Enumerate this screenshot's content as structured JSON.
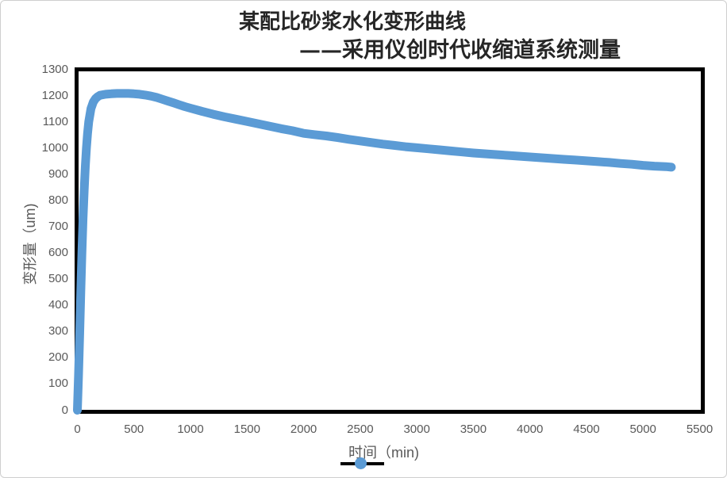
{
  "chart": {
    "title_line1": "某配比砂浆水化变形曲线",
    "title_line2": "——采用仪创时代收缩道系统测量",
    "y_axis_title": "变形量（um)",
    "x_axis_title": "时间（min)",
    "colors": {
      "series": "#5B9BD5",
      "axis_text": "#595959",
      "title_text": "#262626",
      "plot_border": "#000000",
      "legend_line": "#000000"
    }
  },
  "chart_data": {
    "type": "scatter",
    "title": "某配比砂浆水化变形曲线 ——采用仪创时代收缩道系统测量",
    "xlabel": "时间（min)",
    "ylabel": "变形量（um)",
    "xlim": [
      0,
      5500
    ],
    "ylim": [
      0,
      1300
    ],
    "x_ticks": [
      0,
      500,
      1000,
      1500,
      2000,
      2500,
      3000,
      3500,
      4000,
      4500,
      5000,
      5500
    ],
    "y_ticks": [
      0,
      100,
      200,
      300,
      400,
      500,
      600,
      700,
      800,
      900,
      1000,
      1100,
      1200,
      1300
    ],
    "grid": false,
    "legend_position": "bottom",
    "series": [
      {
        "name": "",
        "color": "#5B9BD5",
        "marker": "circle",
        "points": [
          [
            0,
            0
          ],
          [
            10,
            130
          ],
          [
            20,
            290
          ],
          [
            30,
            450
          ],
          [
            40,
            600
          ],
          [
            50,
            730
          ],
          [
            60,
            840
          ],
          [
            70,
            930
          ],
          [
            80,
            1000
          ],
          [
            90,
            1055
          ],
          [
            100,
            1100
          ],
          [
            120,
            1150
          ],
          [
            140,
            1175
          ],
          [
            160,
            1188
          ],
          [
            180,
            1196
          ],
          [
            200,
            1201
          ],
          [
            250,
            1205
          ],
          [
            300,
            1207
          ],
          [
            350,
            1208
          ],
          [
            400,
            1208
          ],
          [
            450,
            1208
          ],
          [
            500,
            1207
          ],
          [
            550,
            1205
          ],
          [
            600,
            1202
          ],
          [
            650,
            1198
          ],
          [
            700,
            1193
          ],
          [
            750,
            1186
          ],
          [
            800,
            1179
          ],
          [
            850,
            1172
          ],
          [
            900,
            1165
          ],
          [
            950,
            1158
          ],
          [
            1000,
            1152
          ],
          [
            1100,
            1140
          ],
          [
            1200,
            1129
          ],
          [
            1300,
            1119
          ],
          [
            1400,
            1110
          ],
          [
            1500,
            1101
          ],
          [
            1600,
            1092
          ],
          [
            1700,
            1083
          ],
          [
            1800,
            1074
          ],
          [
            1900,
            1066
          ],
          [
            2000,
            1056
          ],
          [
            2100,
            1051
          ],
          [
            2200,
            1046
          ],
          [
            2300,
            1040
          ],
          [
            2400,
            1033
          ],
          [
            2500,
            1027
          ],
          [
            2600,
            1021
          ],
          [
            2700,
            1015
          ],
          [
            2800,
            1010
          ],
          [
            2900,
            1005
          ],
          [
            3000,
            1001
          ],
          [
            3100,
            997
          ],
          [
            3200,
            993
          ],
          [
            3300,
            989
          ],
          [
            3400,
            985
          ],
          [
            3500,
            981
          ],
          [
            3600,
            978
          ],
          [
            3700,
            975
          ],
          [
            3800,
            972
          ],
          [
            3900,
            969
          ],
          [
            4000,
            966
          ],
          [
            4100,
            963
          ],
          [
            4200,
            960
          ],
          [
            4300,
            957
          ],
          [
            4400,
            954
          ],
          [
            4500,
            951
          ],
          [
            4600,
            948
          ],
          [
            4700,
            945
          ],
          [
            4800,
            941
          ],
          [
            4900,
            938
          ],
          [
            5000,
            934
          ],
          [
            5100,
            931
          ],
          [
            5200,
            929
          ],
          [
            5250,
            927
          ]
        ]
      }
    ]
  }
}
